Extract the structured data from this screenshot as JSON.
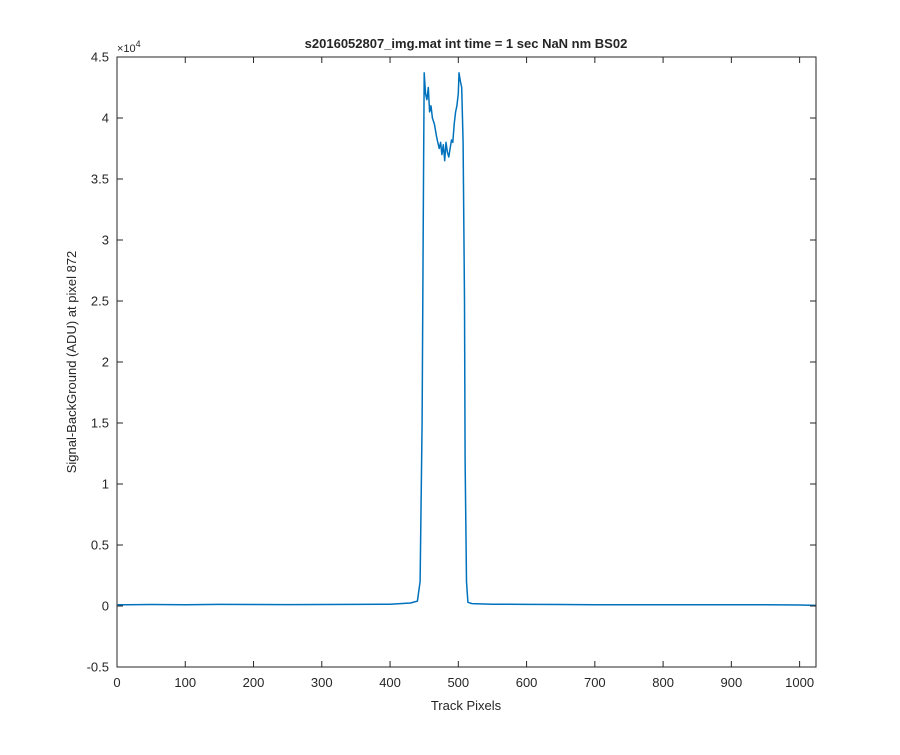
{
  "chart_data": {
    "type": "line",
    "title": "s2016052807_img.mat int time = 1 sec  NaN nm BS02",
    "xlabel": "Track Pixels",
    "ylabel": "Signal-BackGround (ADU) at pixel 872",
    "xlim": [
      0,
      1024
    ],
    "ylim": [
      -5000,
      45000
    ],
    "x_ticks": [
      0,
      100,
      200,
      300,
      400,
      500,
      600,
      700,
      800,
      900,
      1000
    ],
    "x_tick_labels": [
      "0",
      "100",
      "200",
      "300",
      "400",
      "500",
      "600",
      "700",
      "800",
      "900",
      "1000"
    ],
    "y_ticks": [
      -5000,
      0,
      5000,
      10000,
      15000,
      20000,
      25000,
      30000,
      35000,
      40000,
      45000
    ],
    "y_tick_labels": [
      "-0.5",
      "0",
      "0.5",
      "1",
      "1.5",
      "2",
      "2.5",
      "3",
      "3.5",
      "4",
      "4.5"
    ],
    "y_exponent_label": "×10",
    "y_exponent_power": "4",
    "grid": false,
    "line_color": "#0072bd",
    "series": [
      {
        "x": [
          1,
          50,
          100,
          150,
          200,
          250,
          300,
          350,
          400,
          430,
          440,
          444,
          447,
          449,
          450,
          452,
          454,
          456,
          458,
          460,
          462,
          465,
          468,
          470,
          472,
          474,
          476,
          478,
          480,
          482,
          484,
          486,
          488,
          490,
          492,
          494,
          496,
          498,
          500,
          501,
          503,
          505,
          507,
          509,
          510,
          512,
          514,
          520,
          550,
          600,
          650,
          700,
          750,
          800,
          850,
          900,
          950,
          1000,
          1024
        ],
        "y": [
          100,
          120,
          110,
          130,
          120,
          115,
          125,
          130,
          150,
          250,
          400,
          2000,
          15000,
          35000,
          43700,
          42000,
          41500,
          42500,
          40500,
          41000,
          40000,
          39500,
          38500,
          38000,
          37500,
          38000,
          37000,
          37800,
          36500,
          38000,
          37200,
          36800,
          37500,
          38200,
          38000,
          39500,
          40500,
          41000,
          42000,
          43700,
          43000,
          42500,
          38000,
          25000,
          12000,
          2000,
          300,
          200,
          150,
          130,
          120,
          110,
          100,
          105,
          100,
          95,
          100,
          80,
          50
        ]
      }
    ]
  }
}
